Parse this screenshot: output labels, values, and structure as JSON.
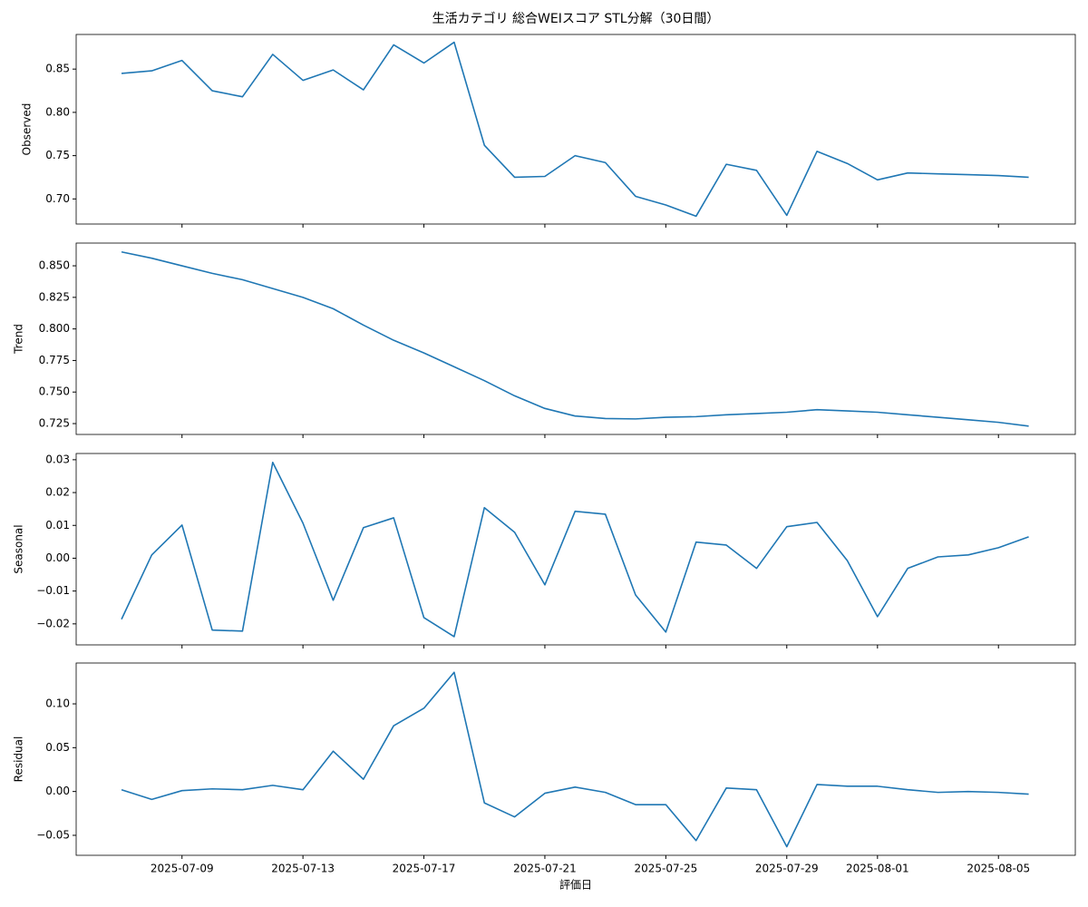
{
  "chart_data": {
    "type": "line",
    "title": "生活カテゴリ 総合WEIスコア STL分解（30日間）",
    "xlabel": "評価日",
    "color": "#1f77b4",
    "x": [
      "2025-07-07",
      "2025-07-08",
      "2025-07-09",
      "2025-07-10",
      "2025-07-11",
      "2025-07-12",
      "2025-07-13",
      "2025-07-14",
      "2025-07-15",
      "2025-07-16",
      "2025-07-17",
      "2025-07-18",
      "2025-07-19",
      "2025-07-20",
      "2025-07-21",
      "2025-07-22",
      "2025-07-23",
      "2025-07-24",
      "2025-07-25",
      "2025-07-26",
      "2025-07-27",
      "2025-07-28",
      "2025-07-29",
      "2025-07-30",
      "2025-07-31",
      "2025-08-01",
      "2025-08-02",
      "2025-08-03",
      "2025-08-04",
      "2025-08-05",
      "2025-08-06"
    ],
    "xlim": [
      "2025-07-05T12:00",
      "2025-08-07T13:00"
    ],
    "xticks": [
      "2025-07-09",
      "2025-07-13",
      "2025-07-17",
      "2025-07-21",
      "2025-07-25",
      "2025-07-29",
      "2025-08-01",
      "2025-08-05"
    ],
    "panels": [
      {
        "ylabel": "Observed",
        "ylim": [
          0.671,
          0.89
        ],
        "yticks": [
          {
            "value": 0.7,
            "label": "0.70"
          },
          {
            "value": 0.75,
            "label": "0.75"
          },
          {
            "value": 0.8,
            "label": "0.80"
          },
          {
            "value": 0.85,
            "label": "0.85"
          }
        ],
        "values": [
          0.845,
          0.848,
          0.86,
          0.825,
          0.818,
          0.867,
          0.837,
          0.849,
          0.826,
          0.878,
          0.857,
          0.881,
          0.762,
          0.725,
          0.726,
          0.75,
          0.742,
          0.703,
          0.693,
          0.68,
          0.74,
          0.733,
          0.681,
          0.755,
          0.741,
          0.722,
          0.73,
          0.729,
          0.728,
          0.727,
          0.725
        ]
      },
      {
        "ylabel": "Trend",
        "ylim": [
          0.7164,
          0.868
        ],
        "yticks": [
          {
            "value": 0.725,
            "label": "0.725"
          },
          {
            "value": 0.75,
            "label": "0.750"
          },
          {
            "value": 0.775,
            "label": "0.775"
          },
          {
            "value": 0.8,
            "label": "0.800"
          },
          {
            "value": 0.825,
            "label": "0.825"
          },
          {
            "value": 0.85,
            "label": "0.850"
          }
        ],
        "values": [
          0.861,
          0.856,
          0.85,
          0.844,
          0.839,
          0.832,
          0.825,
          0.816,
          0.803,
          0.791,
          0.781,
          0.77,
          0.759,
          0.747,
          0.737,
          0.731,
          0.729,
          0.7287,
          0.73,
          0.7305,
          0.732,
          0.733,
          0.734,
          0.736,
          0.735,
          0.734,
          0.732,
          0.73,
          0.728,
          0.726,
          0.723
        ]
      },
      {
        "ylabel": "Seasonal",
        "ylim": [
          -0.0264,
          0.0319
        ],
        "yticks": [
          {
            "value": -0.02,
            "label": "−0.02"
          },
          {
            "value": -0.01,
            "label": "−0.01"
          },
          {
            "value": 0,
            "label": "0.00"
          },
          {
            "value": 0.01,
            "label": "0.01"
          },
          {
            "value": 0.02,
            "label": "0.02"
          },
          {
            "value": 0.03,
            "label": "0.03"
          }
        ],
        "values": [
          -0.0186,
          0.001,
          0.0101,
          -0.0219,
          -0.0222,
          0.0292,
          0.0107,
          -0.0128,
          0.0093,
          0.0123,
          -0.0181,
          -0.0239,
          0.0154,
          0.0079,
          -0.0081,
          0.0143,
          0.0134,
          -0.0112,
          -0.0225,
          0.0049,
          0.004,
          -0.0031,
          0.0096,
          0.0109,
          -0.0007,
          -0.0178,
          -0.0031,
          0.0004,
          0.001,
          0.0032,
          0.0065
        ]
      },
      {
        "ylabel": "Residual",
        "ylim": [
          -0.0728,
          0.1466
        ],
        "yticks": [
          {
            "value": -0.05,
            "label": "−0.05"
          },
          {
            "value": 0,
            "label": "0.00"
          },
          {
            "value": 0.05,
            "label": "0.05"
          },
          {
            "value": 0.1,
            "label": "0.10"
          }
        ],
        "values": [
          0.002,
          -0.009,
          0.001,
          0.003,
          0.002,
          0.007,
          0.002,
          0.046,
          0.014,
          0.075,
          0.095,
          0.136,
          -0.013,
          -0.029,
          -0.002,
          0.005,
          -0.001,
          -0.015,
          -0.015,
          -0.056,
          0.004,
          0.002,
          -0.063,
          0.008,
          0.006,
          0.006,
          0.002,
          -0.001,
          0,
          -0.001,
          -0.003
        ]
      }
    ]
  }
}
